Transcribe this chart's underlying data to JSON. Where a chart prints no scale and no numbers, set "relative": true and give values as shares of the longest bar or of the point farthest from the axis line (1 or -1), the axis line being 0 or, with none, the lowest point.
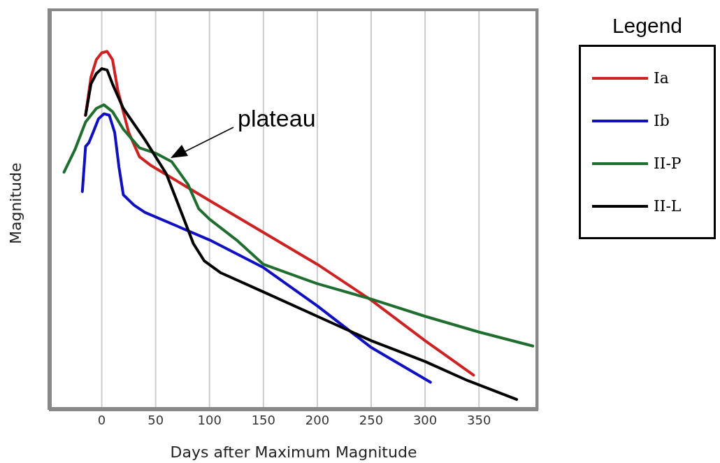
{
  "chart_data": {
    "type": "line",
    "xlabel": "Days after Maximum Magnitude",
    "ylabel": "Magnitude",
    "legend_title": "Legend",
    "legend": "right",
    "grid": "x",
    "relative": true,
    "xlim": [
      -49,
      405
    ],
    "xticks": [
      0,
      50,
      100,
      150,
      200,
      250,
      300,
      350
    ],
    "annotations": [
      "plateau"
    ],
    "series": [
      {
        "name": "Ia",
        "color": "#cc2222",
        "x": [
          -15,
          -10,
          -5,
          0,
          5,
          10,
          15,
          25,
          35,
          45,
          100,
          200,
          250,
          300,
          345
        ],
        "values": [
          0.822,
          0.928,
          0.977,
          0.996,
          1,
          0.977,
          0.89,
          0.774,
          0.706,
          0.683,
          0.584,
          0.406,
          0.306,
          0.193,
          0.097
        ]
      },
      {
        "name": "Ib",
        "color": "#1010c0",
        "x": [
          -18,
          -15,
          -12,
          -8,
          -3,
          2,
          7,
          12,
          16,
          20,
          30,
          40,
          100,
          150,
          200,
          250,
          305
        ],
        "values": [
          0.609,
          0.735,
          0.745,
          0.774,
          0.812,
          0.826,
          0.822,
          0.774,
          0.677,
          0.6,
          0.571,
          0.551,
          0.474,
          0.397,
          0.29,
          0.174,
          0.077
        ]
      },
      {
        "name": "II-P",
        "color": "#1f6e2f",
        "x": [
          -35,
          -25,
          -15,
          -5,
          2,
          10,
          20,
          35,
          50,
          65,
          80,
          90,
          100,
          125,
          150,
          185,
          200,
          250,
          300,
          350,
          400
        ],
        "values": [
          0.663,
          0.725,
          0.803,
          0.841,
          0.851,
          0.832,
          0.783,
          0.731,
          0.716,
          0.692,
          0.629,
          0.561,
          0.532,
          0.474,
          0.406,
          0.368,
          0.352,
          0.309,
          0.261,
          0.217,
          0.178
        ]
      },
      {
        "name": "II-L",
        "color": "#000000",
        "x": [
          -15,
          -10,
          -5,
          0,
          5,
          10,
          20,
          40,
          60,
          75,
          85,
          95,
          110,
          150,
          200,
          250,
          300,
          340,
          385
        ],
        "values": [
          0.822,
          0.909,
          0.938,
          0.952,
          0.948,
          0.909,
          0.841,
          0.754,
          0.658,
          0.542,
          0.464,
          0.416,
          0.383,
          0.329,
          0.261,
          0.193,
          0.135,
          0.081,
          0.029
        ]
      }
    ]
  }
}
